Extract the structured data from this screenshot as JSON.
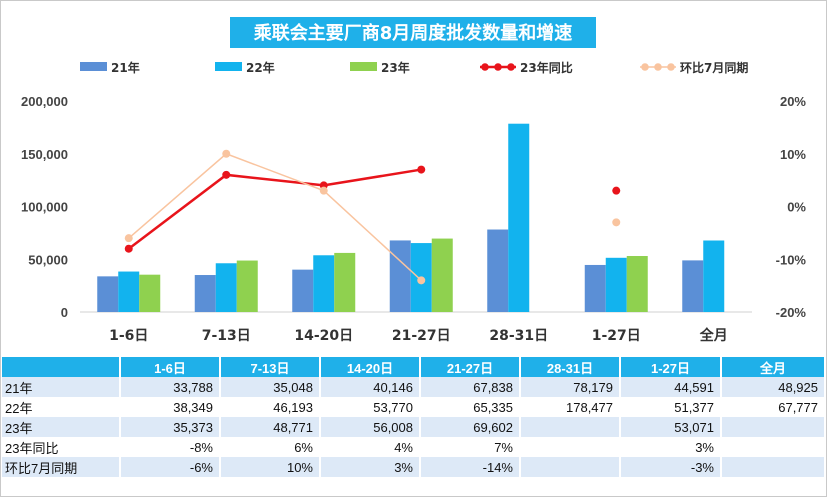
{
  "colors": {
    "title_bg": "#1fb0e9",
    "title_text": "#ffffff",
    "series_21": "#5b8fd6",
    "series_22": "#12b3ee",
    "series_23": "#8fd14f",
    "yoy_23": "#e8141b",
    "mom_july": "#f9c49f",
    "table_header_bg": "#1fb0e9",
    "table_alt_bg": "#dde9f7"
  },
  "chart_data": {
    "type": "bar",
    "title": "乘联会主要厂商8月周度批发数量和增速",
    "categories": [
      "1-6日",
      "7-13日",
      "14-20日",
      "21-27日",
      "28-31日",
      "1-27日",
      "全月"
    ],
    "series": [
      {
        "name": "21年",
        "kind": "bar",
        "axis": "left",
        "values": [
          33788,
          35048,
          40146,
          67838,
          78179,
          44591,
          48925
        ]
      },
      {
        "name": "22年",
        "kind": "bar",
        "axis": "left",
        "values": [
          38349,
          46193,
          53770,
          65335,
          178477,
          51377,
          67777
        ]
      },
      {
        "name": "23年",
        "kind": "bar",
        "axis": "left",
        "values": [
          35373,
          48771,
          56008,
          69602,
          null,
          53071,
          null
        ]
      },
      {
        "name": "23年同比",
        "kind": "line",
        "axis": "right",
        "values": [
          -8,
          6,
          4,
          7,
          null,
          3,
          null
        ]
      },
      {
        "name": "环比7月同期",
        "kind": "line",
        "axis": "right",
        "values": [
          -6,
          10,
          3,
          -14,
          null,
          -3,
          null
        ]
      }
    ],
    "left_axis": {
      "ylim": [
        0,
        200000
      ],
      "ticks": [
        "0",
        "50,000",
        "100,000",
        "150,000",
        "200,000"
      ]
    },
    "right_axis": {
      "ylim": [
        -20,
        20
      ],
      "ticks": [
        "-20%",
        "-10%",
        "0%",
        "10%",
        "20%"
      ]
    },
    "legend_position": "top",
    "grid": false
  },
  "table": {
    "headers": [
      "",
      "1-6日",
      "7-13日",
      "14-20日",
      "21-27日",
      "28-31日",
      "1-27日",
      "全月"
    ],
    "rows": [
      {
        "label": "21年",
        "cells": [
          "33,788",
          "35,048",
          "40,146",
          "67,838",
          "78,179",
          "44,591",
          "48,925"
        ]
      },
      {
        "label": "22年",
        "cells": [
          "38,349",
          "46,193",
          "53,770",
          "65,335",
          "178,477",
          "51,377",
          "67,777"
        ]
      },
      {
        "label": "23年",
        "cells": [
          "35,373",
          "48,771",
          "56,008",
          "69,602",
          "",
          "53,071",
          ""
        ]
      },
      {
        "label": "23年同比",
        "cells": [
          "-8%",
          "6%",
          "4%",
          "7%",
          "",
          "3%",
          ""
        ]
      },
      {
        "label": "环比7月同期",
        "cells": [
          "-6%",
          "10%",
          "3%",
          "-14%",
          "",
          "-3%",
          ""
        ]
      }
    ]
  }
}
